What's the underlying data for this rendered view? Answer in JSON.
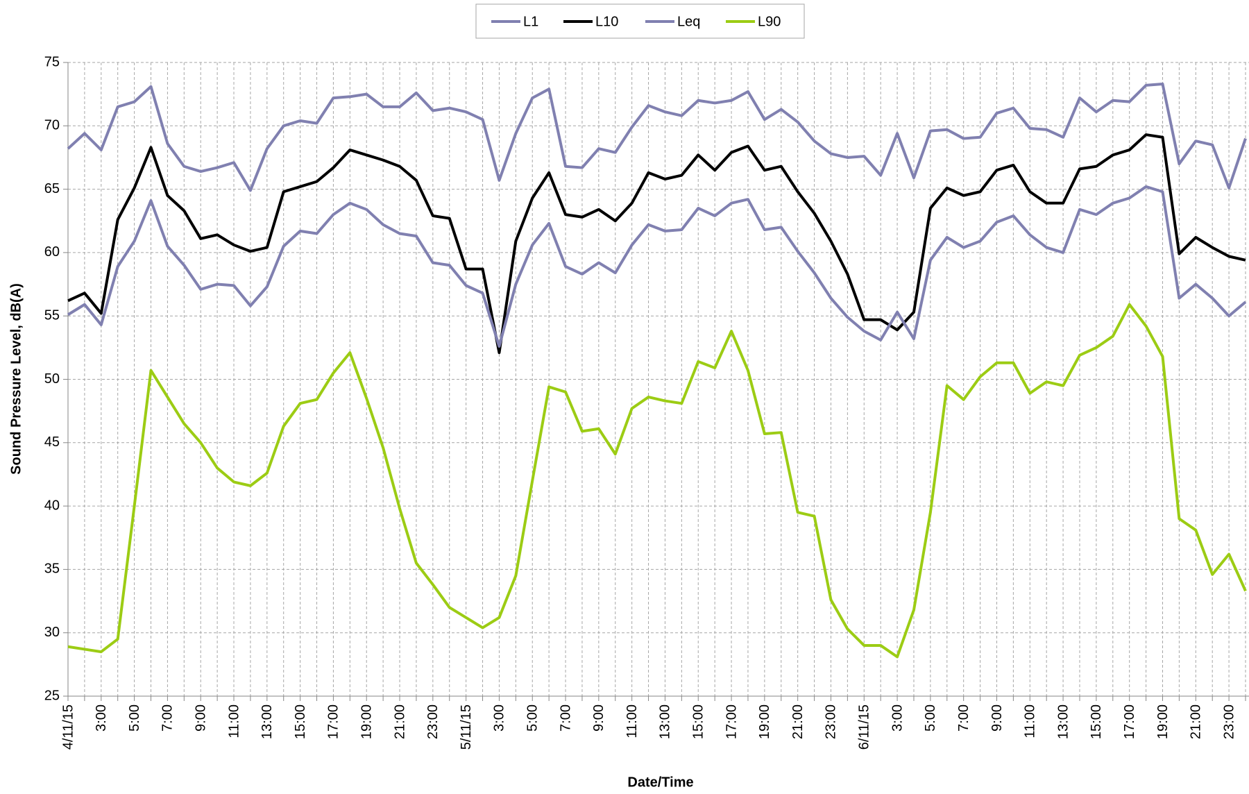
{
  "chart_data": {
    "type": "line",
    "x_label": "Date/Time",
    "y_label": "Sound Pressure Level, dB(A)",
    "categories": [
      "4/11/15",
      null,
      "3:00",
      null,
      "5:00",
      null,
      "7:00",
      null,
      "9:00",
      null,
      "11:00",
      null,
      "13:00",
      null,
      "15:00",
      null,
      "17:00",
      null,
      "19:00",
      null,
      "21:00",
      null,
      "23:00",
      null,
      "5/11/15",
      null,
      "3:00",
      null,
      "5:00",
      null,
      "7:00",
      null,
      "9:00",
      null,
      "11:00",
      null,
      "13:00",
      null,
      "15:00",
      null,
      "17:00",
      null,
      "19:00",
      null,
      "21:00",
      null,
      "23:00",
      null,
      "6/11/15",
      null,
      "3:00",
      null,
      "5:00",
      null,
      "7:00",
      null,
      "9:00",
      null,
      "11:00",
      null,
      "13:00",
      null,
      "15:00",
      null,
      "17:00",
      null,
      "19:00",
      null,
      "21:00",
      null,
      "23:00",
      null
    ],
    "series": [
      {
        "name": "L1",
        "color": "#8080b0",
        "values": [
          68.2,
          69.4,
          68.1,
          71.5,
          71.9,
          73.1,
          68.6,
          66.8,
          66.4,
          66.7,
          67.1,
          64.9,
          68.2,
          70.0,
          70.4,
          70.2,
          72.2,
          72.3,
          72.5,
          71.5,
          71.5,
          72.6,
          71.2,
          71.4,
          71.1,
          70.5,
          65.7,
          69.4,
          72.2,
          72.9,
          66.8,
          66.7,
          68.2,
          67.9,
          69.9,
          71.6,
          71.1,
          70.8,
          72.0,
          71.8,
          72.0,
          72.7,
          70.5,
          71.3,
          70.3,
          68.8,
          67.8,
          67.5,
          67.6,
          66.1,
          69.4,
          65.9,
          69.6,
          69.7,
          69.0,
          69.1,
          71.0,
          71.4,
          69.8,
          69.7,
          69.1,
          72.2,
          71.1,
          72.0,
          71.9,
          73.2,
          73.3,
          67.0,
          68.8,
          68.5,
          65.1,
          69.0
        ]
      },
      {
        "name": "L10",
        "color": "#000000",
        "values": [
          56.2,
          56.8,
          55.2,
          62.6,
          65.1,
          68.3,
          64.5,
          63.3,
          61.1,
          61.4,
          60.6,
          60.1,
          60.4,
          64.8,
          65.2,
          65.6,
          66.7,
          68.1,
          67.7,
          67.3,
          66.8,
          65.7,
          62.9,
          62.7,
          58.7,
          58.7,
          52.1,
          60.9,
          64.3,
          66.3,
          63.0,
          62.8,
          63.4,
          62.5,
          63.9,
          66.3,
          65.8,
          66.1,
          67.7,
          66.5,
          67.9,
          68.4,
          66.5,
          66.8,
          64.8,
          63.1,
          60.9,
          58.3,
          54.7,
          54.7,
          53.9,
          55.3,
          63.5,
          65.1,
          64.5,
          64.8,
          66.5,
          66.9,
          64.8,
          63.9,
          63.9,
          66.6,
          66.8,
          67.7,
          68.1,
          69.3,
          69.1,
          59.9,
          61.2,
          60.4,
          59.7,
          59.4
        ]
      },
      {
        "name": "Leq",
        "color": "#8080b0",
        "values": [
          55.1,
          55.9,
          54.3,
          58.9,
          60.9,
          64.1,
          60.5,
          59.0,
          57.1,
          57.5,
          57.4,
          55.8,
          57.3,
          60.5,
          61.7,
          61.5,
          63.0,
          63.9,
          63.4,
          62.2,
          61.5,
          61.3,
          59.2,
          59.0,
          57.4,
          56.8,
          52.6,
          57.5,
          60.6,
          62.3,
          58.9,
          58.3,
          59.2,
          58.4,
          60.6,
          62.2,
          61.7,
          61.8,
          63.5,
          62.9,
          63.9,
          64.2,
          61.8,
          62.0,
          60.1,
          58.4,
          56.4,
          54.9,
          53.8,
          53.1,
          55.3,
          53.2,
          59.4,
          61.2,
          60.4,
          60.9,
          62.4,
          62.9,
          61.4,
          60.4,
          60.0,
          63.4,
          63.0,
          63.9,
          64.3,
          65.2,
          64.8,
          56.4,
          57.5,
          56.4,
          55.0,
          56.1
        ]
      },
      {
        "name": "L90",
        "color": "#9ccc14",
        "values": [
          28.9,
          28.7,
          28.5,
          29.5,
          40.0,
          50.7,
          48.6,
          46.5,
          45.0,
          43.0,
          41.9,
          41.6,
          42.6,
          46.3,
          48.1,
          48.4,
          50.5,
          52.1,
          48.5,
          44.6,
          39.8,
          35.5,
          33.8,
          32.0,
          31.2,
          30.4,
          31.2,
          34.5,
          42.0,
          49.4,
          49.0,
          45.9,
          46.1,
          44.1,
          47.7,
          48.6,
          48.3,
          48.1,
          51.4,
          50.9,
          53.8,
          50.7,
          45.7,
          45.8,
          39.5,
          39.2,
          32.6,
          30.3,
          29.0,
          29.0,
          28.1,
          31.8,
          39.5,
          49.5,
          48.4,
          50.2,
          51.3,
          51.3,
          48.9,
          49.8,
          49.5,
          51.9,
          52.5,
          53.4,
          55.9,
          54.2,
          51.8,
          39.0,
          38.1,
          34.6,
          36.2,
          33.3
        ]
      }
    ],
    "ylim": [
      25,
      75
    ],
    "yticks": [
      25,
      30,
      35,
      40,
      45,
      50,
      55,
      60,
      65,
      70,
      75
    ],
    "grid": true,
    "legend": "top"
  }
}
